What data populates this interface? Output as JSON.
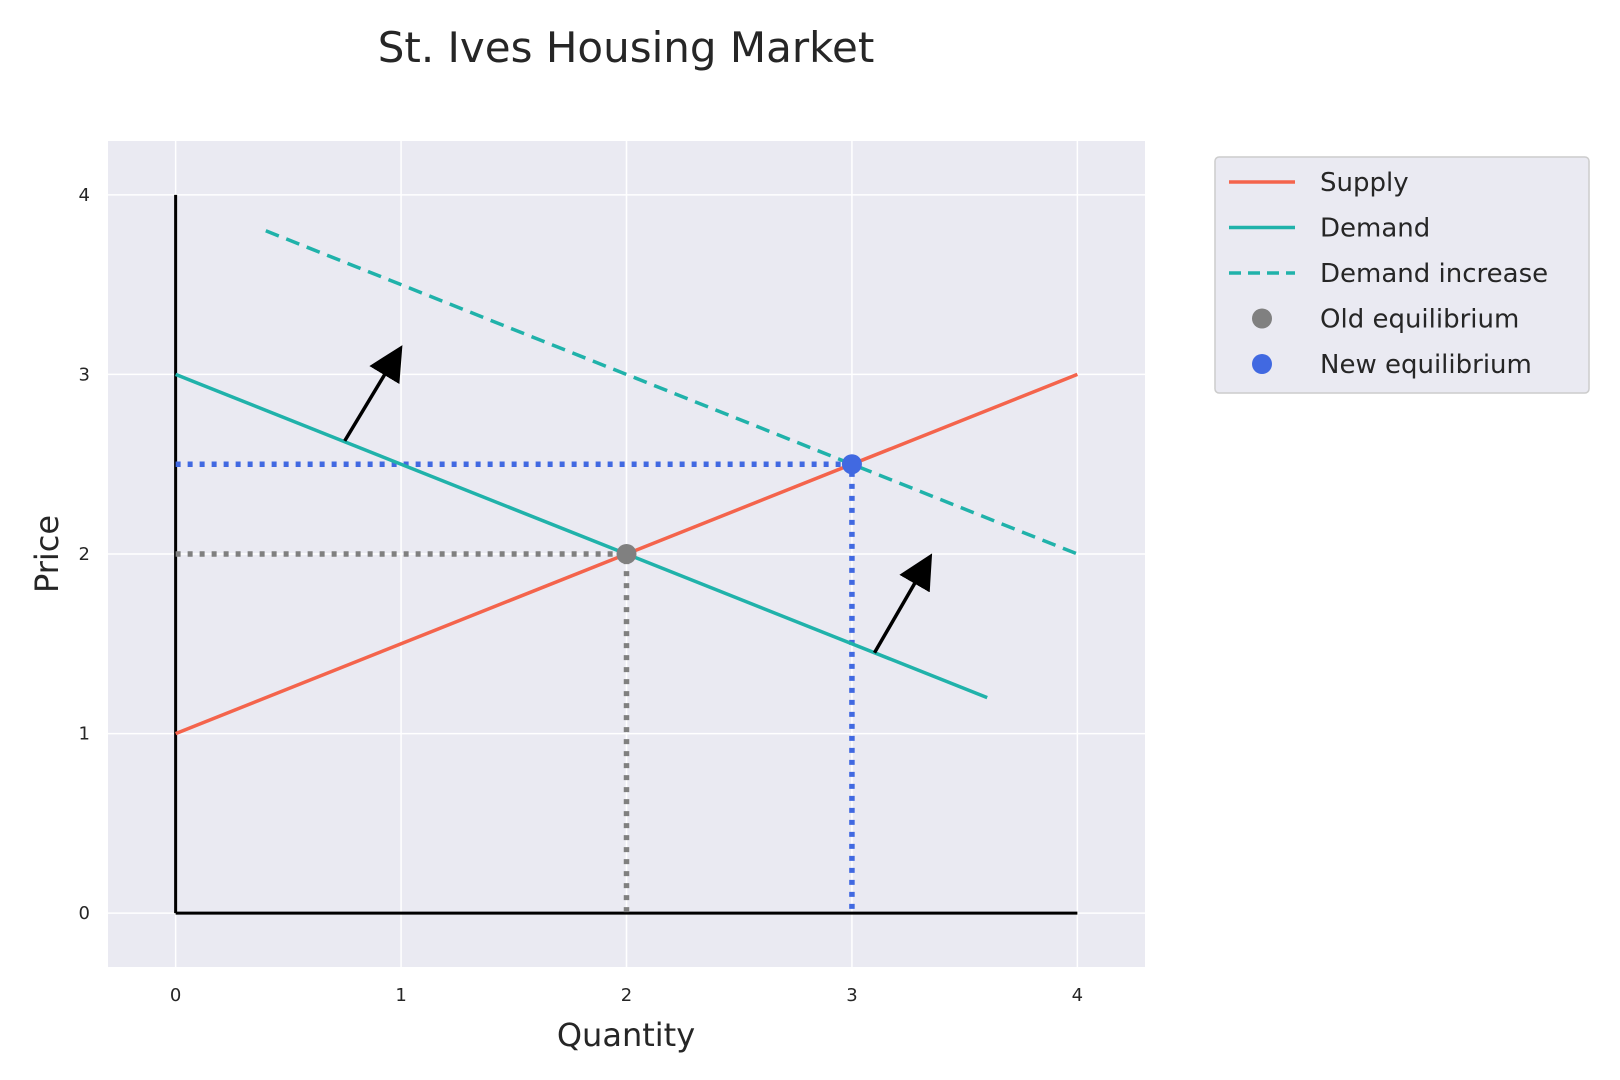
{
  "chart_data": {
    "type": "line",
    "title": "St. Ives Housing Market",
    "xlabel": "Quantity",
    "ylabel": "Price",
    "xlim": [
      -0.3,
      4.3
    ],
    "ylim": [
      -0.3,
      4.3
    ],
    "xticks": [
      "0",
      "1",
      "2",
      "3",
      "4"
    ],
    "yticks": [
      "0",
      "1",
      "2",
      "3",
      "4"
    ],
    "grid": true,
    "legend_position": "outside-top-right",
    "series": [
      {
        "name": "Supply",
        "style": "solid",
        "color": "#f4644c",
        "points": [
          [
            0,
            1
          ],
          [
            4,
            3
          ]
        ]
      },
      {
        "name": "Demand",
        "style": "solid",
        "color": "#20b2aa",
        "points": [
          [
            0,
            3
          ],
          [
            3.6,
            1.2
          ]
        ]
      },
      {
        "name": "Demand increase",
        "style": "dashed",
        "color": "#20b2aa",
        "points": [
          [
            0.4,
            3.8
          ],
          [
            4,
            2
          ]
        ]
      }
    ],
    "points": [
      {
        "name": "Old equilibrium",
        "x": 2,
        "y": 2,
        "color": "#808080"
      },
      {
        "name": "New equilibrium",
        "x": 3,
        "y": 2.5,
        "color": "#4169e1"
      }
    ],
    "guides": [
      {
        "color": "#808080",
        "points": [
          [
            0,
            2
          ],
          [
            2,
            2
          ],
          [
            2,
            0
          ]
        ]
      },
      {
        "color": "#4169e1",
        "points": [
          [
            0,
            2.5
          ],
          [
            3,
            2.5
          ],
          [
            3,
            0
          ]
        ]
      }
    ],
    "arrows": [
      {
        "from": [
          0.75,
          2.63
        ],
        "to": [
          0.99,
          3.13
        ]
      },
      {
        "from": [
          3.1,
          1.45
        ],
        "to": [
          3.34,
          1.97
        ]
      }
    ],
    "axes_lines": [
      {
        "from": [
          0,
          0
        ],
        "to": [
          0,
          4
        ]
      },
      {
        "from": [
          0,
          0
        ],
        "to": [
          4,
          0
        ]
      }
    ]
  }
}
